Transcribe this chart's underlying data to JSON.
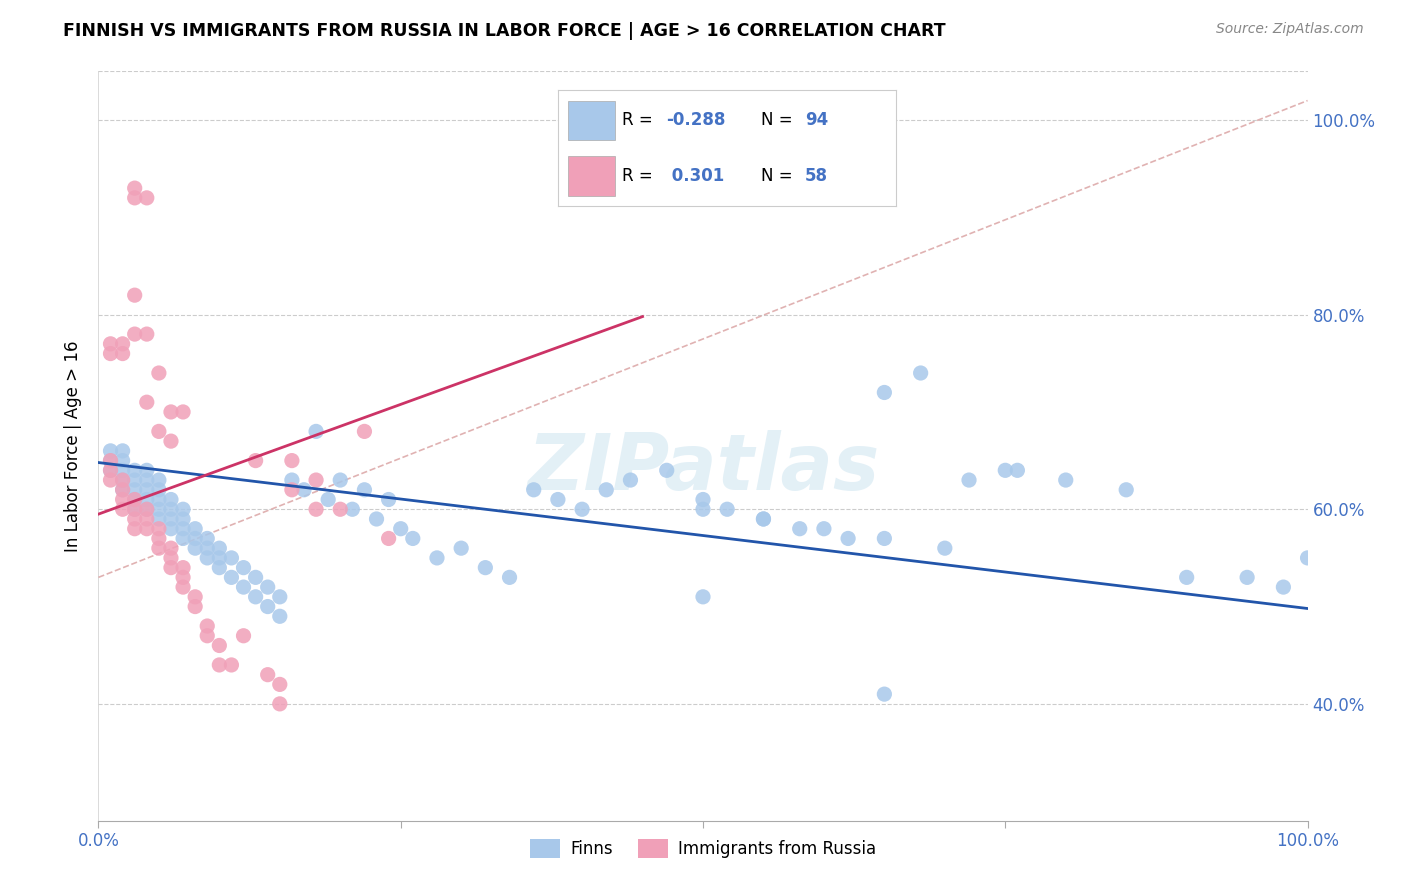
{
  "title": "FINNISH VS IMMIGRANTS FROM RUSSIA IN LABOR FORCE | AGE > 16 CORRELATION CHART",
  "source": "Source: ZipAtlas.com",
  "ylabel": "In Labor Force | Age > 16",
  "blue_color": "#a8c8ea",
  "pink_color": "#f0a0b8",
  "blue_line_color": "#2255aa",
  "pink_line_color": "#cc3366",
  "diag_line_color": "#ddaaaa",
  "legend_R_blue": "-0.288",
  "legend_N_blue": "94",
  "legend_R_pink": "0.301",
  "legend_N_pink": "58",
  "watermark": "ZIPatlas",
  "accent_color": "#4472c4",
  "xlim": [
    0.0,
    1.0
  ],
  "ylim": [
    0.28,
    1.05
  ],
  "yticks": [
    0.4,
    0.6,
    0.8,
    1.0
  ],
  "ytick_labels": [
    "40.0%",
    "60.0%",
    "80.0%",
    "100.0%"
  ],
  "blue_x": [
    0.01,
    0.01,
    0.01,
    0.02,
    0.02,
    0.02,
    0.02,
    0.02,
    0.03,
    0.03,
    0.03,
    0.03,
    0.03,
    0.04,
    0.04,
    0.04,
    0.04,
    0.04,
    0.05,
    0.05,
    0.05,
    0.05,
    0.05,
    0.06,
    0.06,
    0.06,
    0.06,
    0.07,
    0.07,
    0.07,
    0.07,
    0.08,
    0.08,
    0.08,
    0.09,
    0.09,
    0.09,
    0.1,
    0.1,
    0.1,
    0.11,
    0.11,
    0.12,
    0.12,
    0.13,
    0.13,
    0.14,
    0.14,
    0.15,
    0.15,
    0.16,
    0.17,
    0.18,
    0.19,
    0.2,
    0.21,
    0.22,
    0.23,
    0.24,
    0.25,
    0.26,
    0.28,
    0.3,
    0.32,
    0.34,
    0.36,
    0.38,
    0.4,
    0.42,
    0.44,
    0.47,
    0.5,
    0.52,
    0.55,
    0.58,
    0.62,
    0.65,
    0.68,
    0.72,
    0.76,
    0.5,
    0.55,
    0.6,
    0.65,
    0.7,
    0.75,
    0.8,
    0.85,
    0.9,
    0.95,
    0.98,
    0.5,
    0.65,
    1.0
  ],
  "blue_y": [
    0.64,
    0.65,
    0.66,
    0.62,
    0.63,
    0.64,
    0.65,
    0.66,
    0.6,
    0.61,
    0.62,
    0.63,
    0.64,
    0.6,
    0.61,
    0.62,
    0.63,
    0.64,
    0.59,
    0.6,
    0.61,
    0.62,
    0.63,
    0.58,
    0.59,
    0.6,
    0.61,
    0.57,
    0.58,
    0.59,
    0.6,
    0.56,
    0.57,
    0.58,
    0.55,
    0.56,
    0.57,
    0.54,
    0.55,
    0.56,
    0.53,
    0.55,
    0.52,
    0.54,
    0.51,
    0.53,
    0.5,
    0.52,
    0.49,
    0.51,
    0.63,
    0.62,
    0.68,
    0.61,
    0.63,
    0.6,
    0.62,
    0.59,
    0.61,
    0.58,
    0.57,
    0.55,
    0.56,
    0.54,
    0.53,
    0.62,
    0.61,
    0.6,
    0.62,
    0.63,
    0.64,
    0.61,
    0.6,
    0.59,
    0.58,
    0.57,
    0.72,
    0.74,
    0.63,
    0.64,
    0.6,
    0.59,
    0.58,
    0.57,
    0.56,
    0.64,
    0.63,
    0.62,
    0.53,
    0.53,
    0.52,
    0.51,
    0.41,
    0.55
  ],
  "pink_x": [
    0.01,
    0.01,
    0.01,
    0.01,
    0.01,
    0.02,
    0.02,
    0.02,
    0.02,
    0.02,
    0.02,
    0.03,
    0.03,
    0.03,
    0.03,
    0.03,
    0.03,
    0.03,
    0.03,
    0.04,
    0.04,
    0.04,
    0.04,
    0.04,
    0.04,
    0.05,
    0.05,
    0.05,
    0.05,
    0.05,
    0.06,
    0.06,
    0.06,
    0.06,
    0.06,
    0.07,
    0.07,
    0.07,
    0.07,
    0.08,
    0.08,
    0.09,
    0.09,
    0.1,
    0.1,
    0.11,
    0.12,
    0.13,
    0.14,
    0.15,
    0.16,
    0.18,
    0.2,
    0.24,
    0.15,
    0.16,
    0.18,
    0.22
  ],
  "pink_y": [
    0.63,
    0.64,
    0.65,
    0.76,
    0.77,
    0.6,
    0.61,
    0.62,
    0.63,
    0.76,
    0.77,
    0.58,
    0.59,
    0.6,
    0.61,
    0.78,
    0.82,
    0.92,
    0.93,
    0.58,
    0.59,
    0.6,
    0.71,
    0.78,
    0.92,
    0.56,
    0.57,
    0.58,
    0.68,
    0.74,
    0.54,
    0.55,
    0.56,
    0.67,
    0.7,
    0.52,
    0.53,
    0.54,
    0.7,
    0.5,
    0.51,
    0.47,
    0.48,
    0.44,
    0.46,
    0.44,
    0.47,
    0.65,
    0.43,
    0.4,
    0.62,
    0.63,
    0.6,
    0.57,
    0.42,
    0.65,
    0.6,
    0.68
  ],
  "blue_line_x": [
    0.0,
    1.0
  ],
  "blue_line_y": [
    0.648,
    0.498
  ],
  "pink_line_x": [
    0.0,
    0.45
  ],
  "pink_line_y": [
    0.595,
    0.798
  ],
  "diag_line_x": [
    0.0,
    1.0
  ],
  "diag_line_y": [
    0.53,
    1.02
  ]
}
